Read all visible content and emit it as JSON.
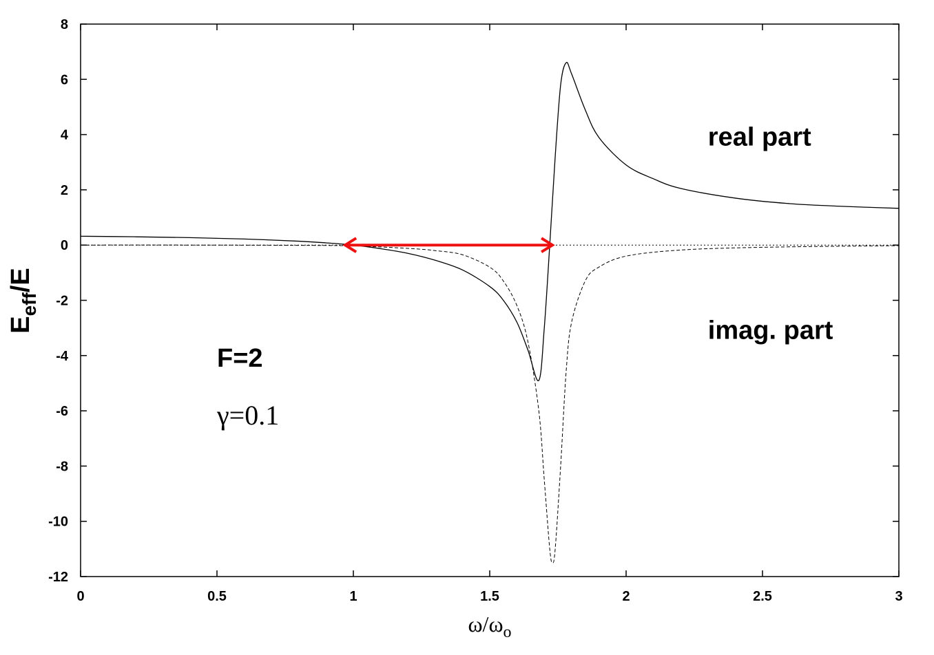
{
  "chart_data": {
    "type": "line",
    "xlabel": {
      "main": "ω/ω",
      "sub": "o"
    },
    "ylabel": {
      "main": "E",
      "sub": "eff",
      "tail": "/E"
    },
    "xlim": [
      0,
      3
    ],
    "ylim": [
      -12,
      8
    ],
    "xticks": [
      0,
      0.5,
      1,
      1.5,
      2,
      2.5,
      3
    ],
    "xtick_labels": [
      "0",
      "0.5",
      "1",
      "1.5",
      "2",
      "2.5",
      "3"
    ],
    "yticks": [
      8,
      6,
      4,
      2,
      0,
      -2,
      -4,
      -6,
      -8,
      -10,
      -12
    ],
    "ytick_labels": [
      "8",
      "6",
      "4",
      "2",
      "0",
      "-2",
      "-4",
      "-6",
      "-8",
      "-10",
      "-12"
    ],
    "grid": false,
    "series": [
      {
        "name": "real part",
        "style": "solid",
        "color": "#000000",
        "x": [
          0,
          0.2,
          0.4,
          0.6,
          0.8,
          0.9,
          1.0,
          1.1,
          1.2,
          1.3,
          1.4,
          1.5,
          1.55,
          1.6,
          1.64,
          1.68,
          1.7,
          1.72,
          1.74,
          1.76,
          1.78,
          1.8,
          1.85,
          1.9,
          2.0,
          2.1,
          2.2,
          2.4,
          2.6,
          2.8,
          3.0
        ],
        "y": [
          0.32,
          0.3,
          0.27,
          0.22,
          0.14,
          0.08,
          0.0,
          -0.13,
          -0.3,
          -0.55,
          -0.9,
          -1.5,
          -2.0,
          -2.8,
          -3.8,
          -4.9,
          -3.0,
          0.0,
          3.2,
          5.8,
          6.6,
          6.2,
          4.9,
          3.9,
          2.9,
          2.4,
          2.05,
          1.7,
          1.5,
          1.4,
          1.33
        ]
      },
      {
        "name": "imag. part",
        "style": "dashed",
        "color": "#000000",
        "x": [
          0,
          0.4,
          0.8,
          1.0,
          1.2,
          1.3,
          1.4,
          1.5,
          1.55,
          1.6,
          1.64,
          1.68,
          1.7,
          1.72,
          1.73,
          1.74,
          1.76,
          1.78,
          1.8,
          1.85,
          1.9,
          2.0,
          2.2,
          2.5,
          3.0
        ],
        "y": [
          0.0,
          0.0,
          -0.01,
          -0.03,
          -0.12,
          -0.2,
          -0.35,
          -0.8,
          -1.3,
          -2.2,
          -3.5,
          -6.0,
          -8.5,
          -11.0,
          -11.5,
          -11.0,
          -8.0,
          -4.6,
          -2.8,
          -1.3,
          -0.8,
          -0.4,
          -0.18,
          -0.08,
          -0.02
        ]
      }
    ],
    "annotations": [
      {
        "id": "real",
        "text": "real part",
        "x": 2.3,
        "y": 3.6,
        "style": "sans"
      },
      {
        "id": "imag",
        "text": "imag. part",
        "x": 2.3,
        "y": -3.4,
        "style": "sans"
      },
      {
        "id": "F",
        "text": "F=2",
        "x": 0.5,
        "y": -4.4,
        "style": "sans"
      },
      {
        "id": "gamma",
        "text": "γ=0.1",
        "x": 0.5,
        "y": -6.5,
        "style": "serif"
      }
    ],
    "arrow": {
      "x_start": 0.97,
      "x_end": 1.73,
      "y": 0,
      "color": "#ee1111"
    },
    "zero_line": {
      "y": 0,
      "style": "dotted",
      "color": "#000000"
    }
  }
}
